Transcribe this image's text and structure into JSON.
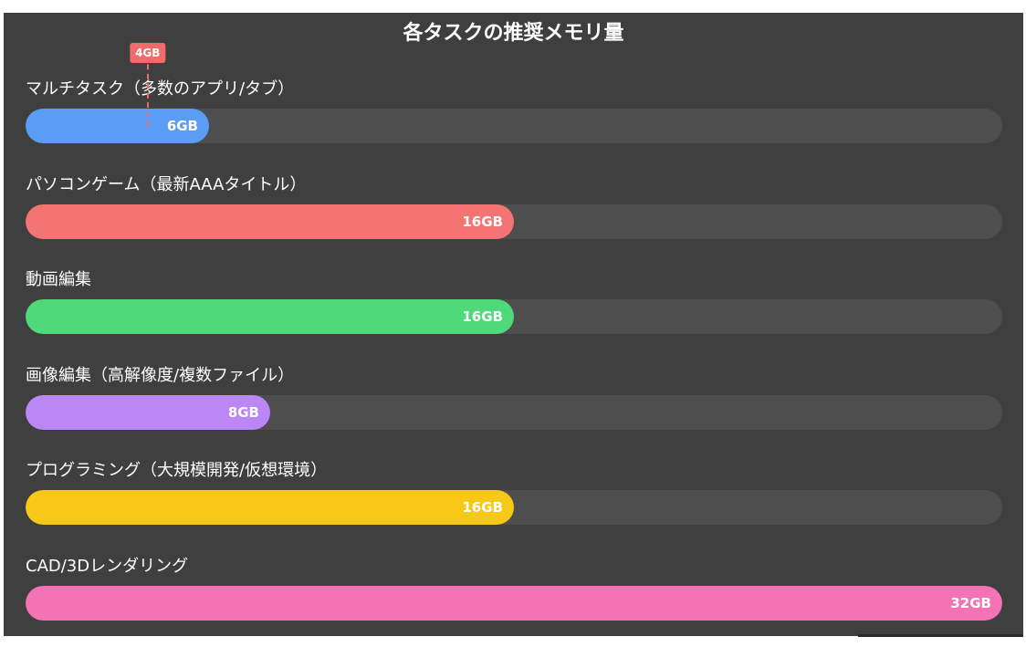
{
  "chart_data": {
    "type": "bar",
    "orientation": "horizontal",
    "title": "各タスクの推奨メモリ量",
    "categories": [
      "マルチタスク（多数のアプリ/タブ）",
      "パソコンゲーム（最新AAAタイトル）",
      "動画編集",
      "画像編集（高解像度/複数ファイル）",
      "プログラミング（大規模開発/仮想環境）",
      "CAD/3Dレンダリング"
    ],
    "values": [
      6,
      16,
      16,
      8,
      16,
      32
    ],
    "value_labels": [
      "6GB",
      "16GB",
      "16GB",
      "8GB",
      "16GB",
      "32GB"
    ],
    "colors": [
      "#5b9cf6",
      "#f47474",
      "#4ed97a",
      "#bb86f5",
      "#f7c817",
      "#f473b5"
    ],
    "xlim": [
      0,
      32
    ],
    "marker": {
      "value": 4,
      "label": "4GB",
      "color": "#f06b6b"
    },
    "grid": false,
    "legend": "none"
  },
  "colors": {
    "panel_background": "#3f3f3f",
    "track": "#4e4e4e"
  }
}
